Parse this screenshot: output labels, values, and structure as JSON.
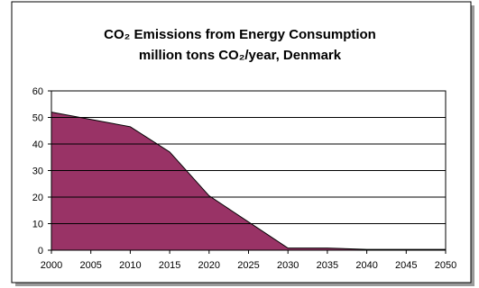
{
  "chart_data": {
    "type": "area",
    "title": "CO₂ Emissions from Energy Consumption",
    "subtitle": "million tons CO₂/year, Denmark",
    "xlabel": "",
    "ylabel": "",
    "x": [
      2000,
      2010,
      2015,
      2020,
      2030,
      2035,
      2040,
      2050
    ],
    "y": [
      52,
      46.5,
      37,
      20.5,
      0.8,
      0.8,
      0.3,
      0.3
    ],
    "xlim": [
      2000,
      2050
    ],
    "ylim": [
      0,
      60
    ],
    "x_ticks": [
      2000,
      2005,
      2010,
      2015,
      2020,
      2025,
      2030,
      2035,
      2040,
      2045,
      2050
    ],
    "y_ticks": [
      0,
      10,
      20,
      30,
      40,
      50,
      60
    ],
    "grid": "horizontal",
    "legend": "none",
    "fill_color": "#993366",
    "outline_color": "#000000",
    "plot_background": "#ffffff"
  }
}
